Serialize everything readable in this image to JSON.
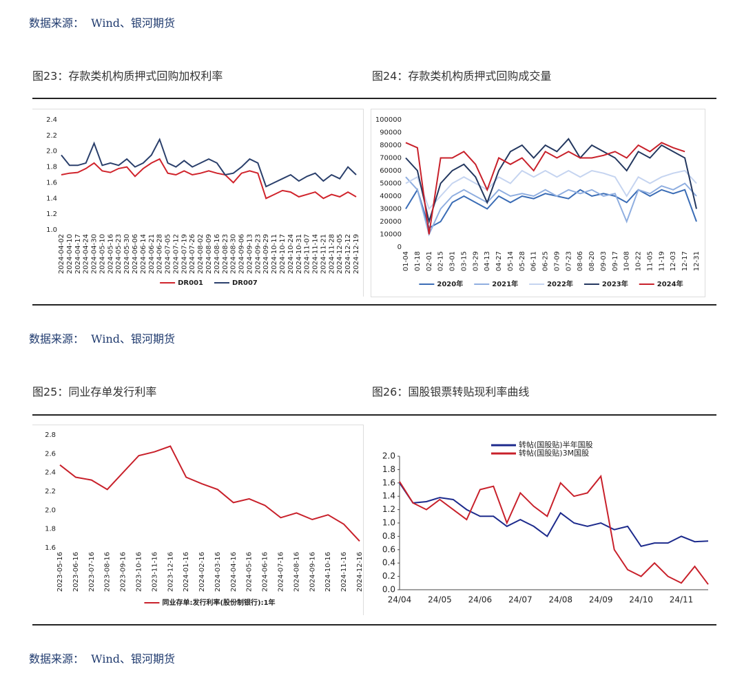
{
  "sources": [
    "数据来源：  Wind、银河期货",
    "数据来源：  Wind、银河期货",
    "数据来源：  Wind、银河期货"
  ],
  "chart_data": [
    {
      "type": "line",
      "title": "图23：存款类机构质押式回购加权利率",
      "categories": [
        "2024-04-02",
        "2024-04-10",
        "2024-04-17",
        "2024-04-24",
        "2024-04-30",
        "2024-05-10",
        "2024-05-16",
        "2024-05-23",
        "2024-05-30",
        "2024-06-06",
        "2024-06-14",
        "2024-06-21",
        "2024-06-28",
        "2024-07-05",
        "2024-07-12",
        "2024-07-19",
        "2024-07-26",
        "2024-08-02",
        "2024-08-09",
        "2024-08-16",
        "2024-08-23",
        "2024-08-30",
        "2024-09-06",
        "2024-09-13",
        "2024-09-23",
        "2024-09-29",
        "2024-10-11",
        "2024-10-17",
        "2024-10-24",
        "2024-10-31",
        "2024-11-07",
        "2024-11-14",
        "2024-11-21",
        "2024-11-28",
        "2024-12-05",
        "2024-12-12",
        "2024-12-19"
      ],
      "series": [
        {
          "name": "DR001",
          "color": "#d0232b",
          "values": [
            1.7,
            1.72,
            1.73,
            1.78,
            1.85,
            1.75,
            1.73,
            1.78,
            1.8,
            1.68,
            1.78,
            1.85,
            1.9,
            1.72,
            1.7,
            1.75,
            1.7,
            1.72,
            1.75,
            1.72,
            1.7,
            1.6,
            1.72,
            1.75,
            1.72,
            1.4,
            1.45,
            1.5,
            1.48,
            1.42,
            1.45,
            1.48,
            1.4,
            1.45,
            1.42,
            1.48,
            1.42
          ]
        },
        {
          "name": "DR007",
          "color": "#2a3f6b",
          "values": [
            1.95,
            1.82,
            1.82,
            1.85,
            2.1,
            1.82,
            1.85,
            1.82,
            1.9,
            1.8,
            1.85,
            1.95,
            2.15,
            1.85,
            1.8,
            1.88,
            1.8,
            1.85,
            1.9,
            1.85,
            1.7,
            1.72,
            1.8,
            1.9,
            1.85,
            1.55,
            1.6,
            1.65,
            1.7,
            1.62,
            1.68,
            1.72,
            1.62,
            1.7,
            1.65,
            1.8,
            1.7
          ]
        }
      ],
      "ylim": [
        1.0,
        2.4
      ],
      "yticks": [
        {
          "value": 1.0,
          "label": "1.0"
        },
        1.2,
        1.4,
        1.6,
        1.8,
        {
          "value": 2.0,
          "label": "2.0"
        },
        2.2,
        2.4
      ],
      "legend": "bottom"
    },
    {
      "type": "line",
      "title": "图24：存款类机构质押式回购成交量",
      "categories": [
        "01-04",
        "01-18",
        "02-01",
        "02-15",
        "03-01",
        "03-15",
        "03-29",
        "04-13",
        "04-27",
        "05-14",
        "05-28",
        "06-11",
        "06-25",
        "07-09",
        "07-23",
        "08-06",
        "08-20",
        "09-03",
        "09-17",
        "10-08",
        "10-22",
        "11-05",
        "11-19",
        "12-03",
        "12-17",
        "12-31"
      ],
      "series": [
        {
          "name": "2020年",
          "color": "#3a6cb5",
          "values": [
            30000,
            45000,
            15000,
            20000,
            35000,
            40000,
            35000,
            30000,
            40000,
            35000,
            40000,
            38000,
            42000,
            40000,
            38000,
            45000,
            40000,
            42000,
            40000,
            35000,
            45000,
            40000,
            45000,
            42000,
            45000,
            20000
          ]
        },
        {
          "name": "2021年",
          "color": "#8faee0",
          "values": [
            55000,
            45000,
            10000,
            30000,
            40000,
            45000,
            40000,
            35000,
            45000,
            40000,
            42000,
            40000,
            45000,
            40000,
            45000,
            42000,
            45000,
            40000,
            42000,
            20000,
            45000,
            42000,
            48000,
            45000,
            50000,
            40000
          ]
        },
        {
          "name": "2022年",
          "color": "#c5d4f0",
          "values": [
            50000,
            55000,
            30000,
            40000,
            50000,
            55000,
            50000,
            45000,
            55000,
            50000,
            60000,
            55000,
            60000,
            55000,
            60000,
            55000,
            60000,
            58000,
            55000,
            40000,
            55000,
            50000,
            55000,
            58000,
            60000,
            50000
          ]
        },
        {
          "name": "2023年",
          "color": "#23375f",
          "values": [
            70000,
            60000,
            20000,
            50000,
            60000,
            65000,
            55000,
            35000,
            60000,
            75000,
            80000,
            70000,
            80000,
            75000,
            85000,
            70000,
            80000,
            75000,
            70000,
            60000,
            75000,
            70000,
            80000,
            75000,
            70000,
            30000
          ]
        },
        {
          "name": "2024年",
          "color": "#c8202a",
          "values": [
            82000,
            78000,
            10000,
            70000,
            70000,
            75000,
            65000,
            45000,
            70000,
            65000,
            70000,
            60000,
            75000,
            70000,
            75000,
            70000,
            70000,
            72000,
            75000,
            70000,
            80000,
            75000,
            82000,
            78000,
            75000,
            null
          ]
        }
      ],
      "ylim": [
        0,
        100000
      ],
      "yticks": [
        0,
        10000,
        20000,
        30000,
        40000,
        50000,
        60000,
        70000,
        80000,
        90000,
        100000
      ],
      "legend": "bottom"
    },
    {
      "type": "line",
      "title": "图25：同业存单发行利率",
      "categories": [
        "2023-05-16",
        "2023-06-16",
        "2023-07-16",
        "2023-08-16",
        "2023-09-16",
        "2023-10-16",
        "2023-11-16",
        "2023-12-16",
        "2024-01-16",
        "2024-02-16",
        "2024-03-16",
        "2024-04-16",
        "2024-05-16",
        "2024-06-16",
        "2024-07-16",
        "2024-08-16",
        "2024-09-16",
        "2024-10-16",
        "2024-11-16",
        "2024-12-16"
      ],
      "series": [
        {
          "name": "同业存单:发行利率(股份制银行):1年",
          "color": "#c8202a",
          "values": [
            2.48,
            2.35,
            2.32,
            2.22,
            2.4,
            2.58,
            2.62,
            2.68,
            2.35,
            2.28,
            2.22,
            2.08,
            2.12,
            2.05,
            1.92,
            1.97,
            1.9,
            1.95,
            1.85,
            1.67
          ]
        }
      ],
      "ylim": [
        1.6,
        2.8
      ],
      "yticks": [
        1.6,
        1.8,
        {
          "value": 2.0,
          "label": "2.0"
        },
        2.2,
        2.4,
        2.6,
        2.8
      ],
      "legend": "bottom"
    },
    {
      "type": "line",
      "title": "图26：国股银票转贴现利率曲线",
      "categories": [
        "24/04",
        null,
        null,
        "24/05",
        null,
        null,
        "24/06",
        null,
        null,
        "24/07",
        null,
        null,
        "24/08",
        null,
        null,
        "24/09",
        null,
        null,
        "24/10",
        null,
        null,
        "24/11",
        null,
        null
      ],
      "series": [
        {
          "name": "转帖(国股贴)半年国股",
          "color": "#1c2a8c",
          "values": [
            1.6,
            1.3,
            1.32,
            1.38,
            1.35,
            1.2,
            1.1,
            1.1,
            0.95,
            1.05,
            0.95,
            0.8,
            1.15,
            1.0,
            0.95,
            1.0,
            0.9,
            0.95,
            0.65,
            0.7,
            0.7,
            0.8,
            0.72,
            0.73
          ]
        },
        {
          "name": "转帖(国股贴)3M国股",
          "color": "#c8202a",
          "values": [
            1.62,
            1.3,
            1.2,
            1.35,
            1.2,
            1.05,
            1.5,
            1.55,
            1.0,
            1.45,
            1.25,
            1.1,
            1.6,
            1.4,
            1.45,
            1.7,
            0.6,
            0.3,
            0.2,
            0.4,
            0.2,
            0.1,
            0.35,
            0.08
          ]
        }
      ],
      "ylim": [
        0,
        2.0
      ],
      "yticks": [
        {
          "value": 0,
          "label": "0.0"
        },
        0.2,
        0.4,
        0.6,
        0.8,
        {
          "value": 1.0,
          "label": "1.0"
        },
        1.2,
        1.4,
        1.6,
        1.8,
        {
          "value": 2.0,
          "label": "2.0"
        }
      ],
      "legend": "top"
    }
  ]
}
